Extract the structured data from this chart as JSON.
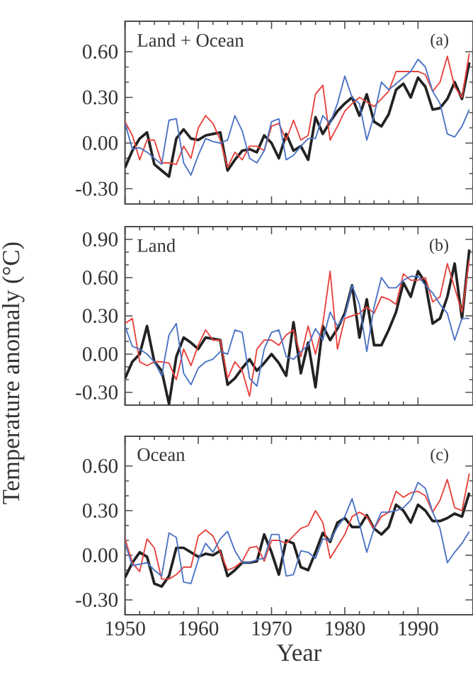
{
  "chart_data": [
    {
      "type": "line",
      "title": "Land + Ocean",
      "annotations": [
        "(a)"
      ],
      "x": [
        1950,
        1951,
        1952,
        1953,
        1954,
        1955,
        1956,
        1957,
        1958,
        1959,
        1960,
        1961,
        1962,
        1963,
        1964,
        1965,
        1966,
        1967,
        1968,
        1969,
        1970,
        1971,
        1972,
        1973,
        1974,
        1975,
        1976,
        1977,
        1978,
        1979,
        1980,
        1981,
        1982,
        1983,
        1984,
        1985,
        1986,
        1987,
        1988,
        1989,
        1990,
        1991,
        1992,
        1993,
        1994,
        1995,
        1996,
        1997
      ],
      "xlim": [
        1950,
        1997.5
      ],
      "xticks": [
        1950,
        1960,
        1970,
        1980,
        1990
      ],
      "ylim": [
        -0.4,
        0.8
      ],
      "yticks": [
        {
          "value": -0.3,
          "label": "-0.30"
        },
        {
          "value": 0,
          "label": "0.00"
        },
        {
          "value": 0.3,
          "label": "0.30"
        },
        {
          "value": 0.6,
          "label": "0.60"
        }
      ],
      "tick_labels": "y",
      "series": [
        {
          "color": "#222222",
          "values": [
            -0.16,
            -0.05,
            0.03,
            0.07,
            -0.14,
            -0.18,
            -0.22,
            0.03,
            0.09,
            0.03,
            0.02,
            0.05,
            0.06,
            0.07,
            -0.18,
            -0.11,
            -0.05,
            -0.04,
            -0.06,
            0.05,
            0.0,
            -0.1,
            0.06,
            -0.05,
            -0.02,
            -0.11,
            0.17,
            0.06,
            0.14,
            0.21,
            0.26,
            0.3,
            0.18,
            0.32,
            0.14,
            0.11,
            0.19,
            0.35,
            0.39,
            0.3,
            0.43,
            0.37,
            0.22,
            0.23,
            0.29,
            0.4,
            0.29,
            0.53
          ]
        },
        {
          "color": "#e8413c",
          "values": [
            0.14,
            0.05,
            -0.11,
            0.02,
            0.02,
            -0.13,
            -0.13,
            -0.14,
            -0.02,
            -0.1,
            0.1,
            0.18,
            0.13,
            0.02,
            -0.16,
            -0.06,
            -0.11,
            -0.02,
            -0.02,
            -0.05,
            0.11,
            0.13,
            0.02,
            0.15,
            0.02,
            0.05,
            0.32,
            0.38,
            0.02,
            0.11,
            0.21,
            0.26,
            0.3,
            0.27,
            0.24,
            0.29,
            0.34,
            0.47,
            0.47,
            0.47,
            0.47,
            0.45,
            0.34,
            0.4,
            0.57,
            0.37,
            0.3,
            0.59
          ]
        },
        {
          "color": "#4a72c4",
          "values": [
            0.13,
            -0.04,
            -0.03,
            -0.06,
            -0.1,
            -0.14,
            0.15,
            0.16,
            -0.13,
            -0.21,
            -0.08,
            0.03,
            0.01,
            0.0,
            0.02,
            0.18,
            0.08,
            -0.1,
            -0.13,
            -0.05,
            0.14,
            0.16,
            -0.11,
            -0.08,
            -0.02,
            0.03,
            0.03,
            0.18,
            0.13,
            0.26,
            0.44,
            0.3,
            0.26,
            0.02,
            0.18,
            0.4,
            0.35,
            0.39,
            0.43,
            0.47,
            0.55,
            0.5,
            0.34,
            0.26,
            0.06,
            0.04,
            0.11,
            0.22
          ]
        }
      ]
    },
    {
      "type": "line",
      "title": "Land",
      "annotations": [
        "(b)"
      ],
      "ylabel": "Temperature anomaly (°C)",
      "x": [
        1950,
        1951,
        1952,
        1953,
        1954,
        1955,
        1956,
        1957,
        1958,
        1959,
        1960,
        1961,
        1962,
        1963,
        1964,
        1965,
        1966,
        1967,
        1968,
        1969,
        1970,
        1971,
        1972,
        1973,
        1974,
        1975,
        1976,
        1977,
        1978,
        1979,
        1980,
        1981,
        1982,
        1983,
        1984,
        1985,
        1986,
        1987,
        1988,
        1989,
        1990,
        1991,
        1992,
        1993,
        1994,
        1995,
        1996,
        1997
      ],
      "xlim": [
        1950,
        1997.5
      ],
      "xticks": [
        1950,
        1960,
        1970,
        1980,
        1990
      ],
      "ylim": [
        -0.4,
        1.0
      ],
      "yticks": [
        {
          "value": -0.3,
          "label": "-0.30"
        },
        {
          "value": 0,
          "label": "0.00"
        },
        {
          "value": 0.3,
          "label": "0.30"
        },
        {
          "value": 0.6,
          "label": "0.60"
        },
        {
          "value": 0.9,
          "label": "0.90"
        }
      ],
      "tick_labels": "y",
      "series": [
        {
          "color": "#222222",
          "values": [
            -0.19,
            -0.06,
            0.0,
            0.22,
            -0.06,
            -0.13,
            -0.39,
            -0.02,
            0.13,
            0.09,
            0.04,
            0.13,
            0.12,
            0.11,
            -0.24,
            -0.19,
            -0.11,
            -0.04,
            -0.13,
            -0.07,
            0.0,
            -0.07,
            -0.17,
            0.25,
            -0.15,
            0.09,
            -0.26,
            0.22,
            0.11,
            0.2,
            0.32,
            0.54,
            0.13,
            0.43,
            0.07,
            0.07,
            0.19,
            0.33,
            0.56,
            0.45,
            0.65,
            0.56,
            0.24,
            0.28,
            0.45,
            0.71,
            0.28,
            0.82
          ]
        },
        {
          "color": "#e8413c",
          "values": [
            0.24,
            0.28,
            -0.06,
            -0.09,
            -0.06,
            -0.06,
            -0.07,
            -0.2,
            0.04,
            -0.09,
            0.07,
            0.19,
            0.11,
            0.11,
            -0.19,
            -0.06,
            -0.13,
            -0.33,
            0.04,
            0.11,
            0.11,
            0.07,
            0.15,
            0.19,
            -0.02,
            0.22,
            0.0,
            0.24,
            0.65,
            0.04,
            0.28,
            0.3,
            0.32,
            0.37,
            0.32,
            0.45,
            0.43,
            0.39,
            0.63,
            0.58,
            0.58,
            0.6,
            0.41,
            0.45,
            0.71,
            0.52,
            0.33,
            0.74
          ]
        },
        {
          "color": "#4a72c4",
          "values": [
            0.22,
            0.06,
            0.04,
            0.0,
            -0.06,
            -0.17,
            0.15,
            0.24,
            -0.15,
            -0.24,
            -0.11,
            -0.06,
            -0.04,
            0.02,
            0.0,
            0.19,
            0.17,
            -0.19,
            -0.25,
            0.04,
            0.17,
            0.19,
            -0.02,
            -0.04,
            0.02,
            0.07,
            0.2,
            0.11,
            0.33,
            0.22,
            0.3,
            0.54,
            0.39,
            0.02,
            0.37,
            0.6,
            0.52,
            0.52,
            0.58,
            0.61,
            0.61,
            0.54,
            0.48,
            0.39,
            0.32,
            0.11,
            0.28,
            0.28
          ]
        }
      ]
    },
    {
      "type": "line",
      "title": "Ocean",
      "annotations": [
        "(c)"
      ],
      "xlabel": "Year",
      "x": [
        1950,
        1951,
        1952,
        1953,
        1954,
        1955,
        1956,
        1957,
        1958,
        1959,
        1960,
        1961,
        1962,
        1963,
        1964,
        1965,
        1966,
        1967,
        1968,
        1969,
        1970,
        1971,
        1972,
        1973,
        1974,
        1975,
        1976,
        1977,
        1978,
        1979,
        1980,
        1981,
        1982,
        1983,
        1984,
        1985,
        1986,
        1987,
        1988,
        1989,
        1990,
        1991,
        1992,
        1993,
        1994,
        1995,
        1996,
        1997
      ],
      "xlim": [
        1950,
        1997.5
      ],
      "xticks": [
        1950,
        1960,
        1970,
        1980,
        1990
      ],
      "ylim": [
        -0.4,
        0.8
      ],
      "yticks": [
        {
          "value": -0.3,
          "label": "-0.30"
        },
        {
          "value": 0,
          "label": "0.00"
        },
        {
          "value": 0.3,
          "label": "0.30"
        },
        {
          "value": 0.6,
          "label": "0.60"
        }
      ],
      "series": [
        {
          "color": "#222222",
          "values": [
            -0.15,
            -0.05,
            0.02,
            -0.01,
            -0.19,
            -0.21,
            -0.14,
            0.05,
            0.05,
            0.02,
            -0.01,
            0.01,
            0.0,
            0.03,
            -0.14,
            -0.1,
            -0.05,
            -0.05,
            -0.04,
            0.14,
            0.02,
            -0.13,
            0.1,
            0.08,
            -0.08,
            -0.1,
            0.02,
            0.15,
            0.09,
            0.22,
            0.25,
            0.19,
            0.19,
            0.27,
            0.18,
            0.14,
            0.19,
            0.34,
            0.3,
            0.22,
            0.34,
            0.3,
            0.23,
            0.23,
            0.25,
            0.28,
            0.26,
            0.42
          ]
        },
        {
          "color": "#e8413c",
          "values": [
            0.11,
            -0.05,
            -0.11,
            0.11,
            0.05,
            -0.16,
            -0.16,
            -0.13,
            -0.08,
            -0.08,
            0.13,
            0.17,
            0.13,
            0.02,
            -0.1,
            -0.08,
            -0.04,
            0.05,
            0.06,
            -0.04,
            0.1,
            0.1,
            0.08,
            0.13,
            0.18,
            0.2,
            0.3,
            0.22,
            -0.02,
            0.06,
            0.14,
            0.26,
            0.29,
            0.26,
            0.18,
            0.26,
            0.29,
            0.43,
            0.39,
            0.42,
            0.43,
            0.4,
            0.29,
            0.37,
            0.51,
            0.32,
            0.3,
            0.55
          ]
        },
        {
          "color": "#4a72c4",
          "values": [
            0.08,
            -0.07,
            -0.06,
            -0.05,
            -0.1,
            -0.14,
            0.15,
            0.12,
            -0.18,
            -0.19,
            -0.03,
            0.08,
            0.02,
            0.11,
            0.16,
            0.03,
            -0.05,
            -0.05,
            -0.03,
            -0.02,
            0.14,
            0.14,
            -0.14,
            -0.13,
            0.03,
            0.02,
            -0.02,
            0.11,
            0.1,
            0.19,
            0.26,
            0.38,
            0.21,
            0.02,
            0.18,
            0.29,
            0.29,
            0.3,
            0.32,
            0.37,
            0.49,
            0.45,
            0.29,
            0.18,
            -0.05,
            0.02,
            0.08,
            0.16
          ]
        }
      ]
    }
  ]
}
